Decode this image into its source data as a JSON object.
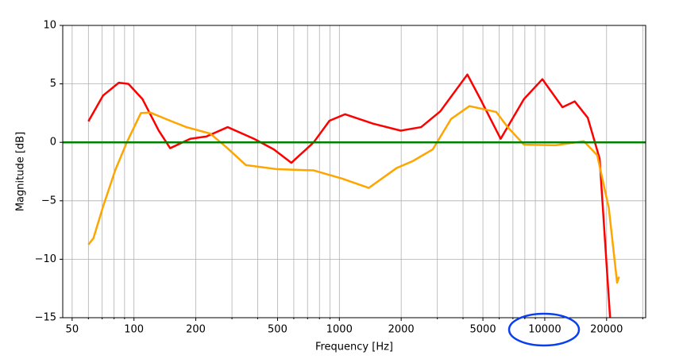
{
  "chart_data": {
    "type": "line",
    "xscale": "log",
    "grid": true,
    "x_label": "Frequency [Hz]",
    "y_label": "Magnitude [dB]",
    "xlim": [
      45,
      31000
    ],
    "ylim": [
      -15,
      10
    ],
    "xticks": [
      50,
      100,
      200,
      500,
      1000,
      2000,
      5000,
      10000,
      20000
    ],
    "xminorticks": [
      60,
      70,
      80,
      90,
      300,
      400,
      600,
      700,
      800,
      900,
      3000,
      4000,
      6000,
      7000,
      8000,
      9000,
      30000
    ],
    "yticks": [
      10,
      5,
      0,
      {
        "value": -5,
        "label": "−5"
      },
      {
        "value": -10,
        "label": "−10"
      },
      {
        "value": -15,
        "label": "−15"
      }
    ],
    "hlines": [
      {
        "value": 0,
        "color": "#008000"
      }
    ],
    "series": [
      {
        "color": "#ff0000",
        "x": [
          60,
          70.7,
          84.4,
          94,
          110,
          132,
          150,
          188,
          225,
          286,
          384,
          479,
          584,
          750,
          895,
          1065,
          1460,
          1990,
          2500,
          3100,
          4200,
          4860,
          6100,
          7920,
          9740,
          12200,
          14000,
          16200,
          18500,
          20800
        ],
        "values": [
          1.8,
          4.0,
          5.1,
          5.0,
          3.7,
          1.0,
          -0.5,
          0.3,
          0.5,
          1.3,
          0.3,
          -0.6,
          -1.75,
          0.0,
          1.85,
          2.4,
          1.6,
          1.0,
          1.3,
          2.65,
          5.8,
          3.7,
          0.3,
          3.7,
          5.4,
          3.0,
          3.5,
          2.1,
          -1.4,
          -15
        ]
      },
      {
        "color": "#ffa500",
        "x": [
          60,
          63.5,
          70.7,
          81,
          92.3,
          108,
          120,
          150,
          180,
          235,
          281,
          351,
          500,
          750,
          1030,
          1390,
          1900,
          2280,
          2850,
          3500,
          4300,
          5800,
          6600,
          7920,
          11300,
          15500,
          18000,
          20500,
          22500,
          23000
        ],
        "values": [
          -8.75,
          -8.2,
          -5.5,
          -2.4,
          0,
          2.5,
          2.55,
          1.85,
          1.3,
          0.75,
          -0.4,
          -1.95,
          -2.3,
          -2.4,
          -3.1,
          -3.9,
          -2.2,
          -1.6,
          -0.6,
          2.0,
          3.1,
          2.6,
          1.3,
          -0.2,
          -0.25,
          0.1,
          -1.1,
          -5.6,
          -12,
          -11.5
        ]
      }
    ]
  }
}
